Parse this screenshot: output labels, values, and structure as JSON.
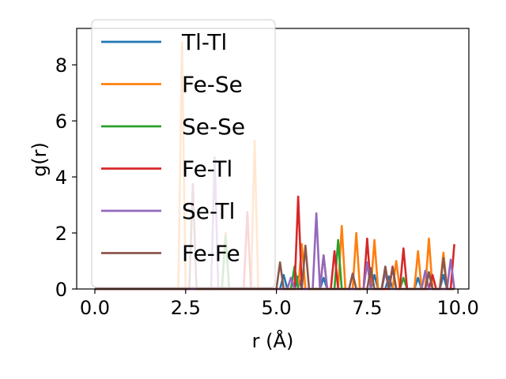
{
  "chart_data": {
    "type": "line",
    "xlabel": "r (Å)",
    "ylabel": "g(r)",
    "xlim": [
      -0.5,
      10.3
    ],
    "ylim": [
      0,
      9.3
    ],
    "xticks": [
      0.0,
      2.5,
      5.0,
      7.5,
      10.0
    ],
    "xtick_labels": [
      "0.0",
      "2.5",
      "5.0",
      "7.5",
      "10.0"
    ],
    "yticks": [
      0,
      2,
      4,
      6,
      8
    ],
    "ytick_labels": [
      "0",
      "2",
      "4",
      "6",
      "8"
    ],
    "grid": false,
    "legend_position": "upper-left",
    "series": [
      {
        "name": "Tl-Tl",
        "color": "#1f77b4",
        "x": [
          0.0,
          5.1,
          5.2,
          5.3,
          5.5,
          5.6,
          5.7,
          6.2,
          6.3,
          6.4,
          7.6,
          7.7,
          7.8,
          8.0,
          8.1,
          8.2,
          8.8,
          8.9,
          9.0,
          9.5,
          9.6,
          9.7,
          9.9
        ],
        "y": [
          0.0,
          0.0,
          0.5,
          0.0,
          0.0,
          0.45,
          0.0,
          0.0,
          0.4,
          0.0,
          0.0,
          0.5,
          0.0,
          0.0,
          0.45,
          0.0,
          0.0,
          0.4,
          0.0,
          0.0,
          0.5,
          0.0,
          0.0
        ]
      },
      {
        "name": "Fe-Se",
        "color": "#ff7f0e",
        "x": [
          0.0,
          2.3,
          2.4,
          2.5,
          3.5,
          3.6,
          3.7,
          4.3,
          4.4,
          4.5,
          5.6,
          5.7,
          5.8,
          6.2,
          6.3,
          6.4,
          6.7,
          6.8,
          6.9,
          7.1,
          7.2,
          7.3,
          7.6,
          7.7,
          7.8,
          8.2,
          8.3,
          8.4,
          8.8,
          8.9,
          9.0,
          9.1,
          9.2,
          9.3,
          9.5,
          9.6,
          9.7,
          9.9
        ],
        "y": [
          0.0,
          0.0,
          8.8,
          0.0,
          0.0,
          2.0,
          0.0,
          0.0,
          5.3,
          0.0,
          0.0,
          1.6,
          0.0,
          0.0,
          1.2,
          0.0,
          0.0,
          2.25,
          0.0,
          0.0,
          2.0,
          0.0,
          0.0,
          1.75,
          0.0,
          0.0,
          1.0,
          0.0,
          0.0,
          1.35,
          0.0,
          0.0,
          1.8,
          0.0,
          0.0,
          1.3,
          0.0,
          0.0
        ]
      },
      {
        "name": "Se-Se",
        "color": "#2ca02c",
        "x": [
          0.0,
          3.5,
          3.6,
          3.7,
          5.4,
          5.5,
          5.6,
          6.6,
          6.7,
          6.8,
          7.9,
          8.0,
          8.1,
          8.4,
          8.5,
          8.6,
          9.1,
          9.2,
          9.3,
          9.9
        ],
        "y": [
          0.0,
          0.0,
          1.9,
          0.0,
          0.0,
          0.8,
          0.0,
          0.0,
          1.75,
          0.0,
          0.0,
          0.75,
          0.0,
          0.0,
          0.4,
          0.0,
          0.0,
          0.6,
          0.0,
          0.0
        ]
      },
      {
        "name": "Fe-Tl",
        "color": "#d62728",
        "x": [
          0.0,
          4.1,
          4.2,
          4.3,
          5.5,
          5.6,
          5.7,
          6.5,
          6.6,
          6.7,
          7.4,
          7.5,
          7.6,
          8.1,
          8.2,
          8.3,
          8.4,
          8.5,
          8.6,
          9.2,
          9.3,
          9.4,
          9.8,
          9.9
        ],
        "y": [
          0.0,
          0.0,
          2.75,
          0.0,
          0.0,
          3.3,
          0.0,
          0.0,
          1.35,
          0.0,
          0.0,
          1.8,
          0.0,
          0.0,
          0.8,
          0.0,
          0.0,
          1.45,
          0.0,
          0.0,
          0.5,
          0.0,
          0.0,
          1.6
        ]
      },
      {
        "name": "Se-Tl",
        "color": "#9467bd",
        "x": [
          0.0,
          3.2,
          3.3,
          3.4,
          5.3,
          5.4,
          5.5,
          6.0,
          6.1,
          6.2,
          6.3,
          6.4,
          7.4,
          7.5,
          7.6,
          7.9,
          8.0,
          8.1,
          9.0,
          9.1,
          9.2,
          9.7,
          9.8,
          9.9
        ],
        "y": [
          0.0,
          0.0,
          4.7,
          0.0,
          0.0,
          0.4,
          0.0,
          0.0,
          2.7,
          0.0,
          1.2,
          0.0,
          0.0,
          0.95,
          0.0,
          0.0,
          0.6,
          0.0,
          0.0,
          0.65,
          0.0,
          0.0,
          1.05,
          0.0
        ]
      },
      {
        "name": "Fe-Fe",
        "color": "#8c564b",
        "x": [
          0.0,
          2.6,
          2.7,
          2.8,
          5.0,
          5.1,
          5.2,
          5.7,
          5.8,
          5.9,
          7.0,
          7.1,
          7.2,
          7.5,
          7.6,
          7.7,
          7.9,
          8.0,
          8.1,
          8.2,
          8.3,
          9.1,
          9.2,
          9.3,
          9.5,
          9.6,
          9.7,
          9.9
        ],
        "y": [
          0.0,
          0.0,
          3.75,
          0.0,
          0.0,
          0.95,
          0.0,
          0.0,
          1.55,
          0.0,
          0.0,
          0.55,
          0.0,
          0.0,
          0.75,
          0.0,
          0.0,
          0.8,
          0.0,
          0.75,
          0.0,
          0.0,
          0.6,
          0.0,
          0.0,
          1.1,
          0.0,
          0.0
        ]
      }
    ]
  }
}
